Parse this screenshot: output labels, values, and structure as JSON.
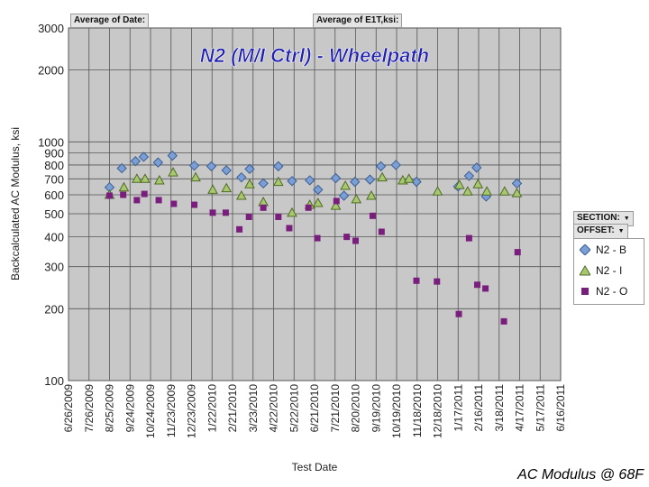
{
  "pivot": {
    "filter1": "Average of Date:",
    "filter2": "Average of E1T,ksi:",
    "section_label": "SECTION:",
    "offset_label": "OFFSET:"
  },
  "footer": "AC Modulus @ 68F",
  "chart_data": {
    "type": "scatter",
    "title": "N2 (M/I Ctrl) - Wheelpath",
    "xlabel": "Test Date",
    "ylabel": "Backcalculated AC Modulus, ksi",
    "yscale": "log",
    "ylim": [
      100,
      3000
    ],
    "yticks": [
      100,
      200,
      300,
      400,
      500,
      600,
      700,
      800,
      900,
      1000,
      2000,
      3000
    ],
    "xlim": [
      "2009-06-26",
      "2011-06-16"
    ],
    "xticks": [
      "6/26/2009",
      "7/26/2009",
      "8/25/2009",
      "9/24/2009",
      "10/24/2009",
      "11/23/2009",
      "12/23/2009",
      "1/22/2010",
      "2/21/2010",
      "3/23/2010",
      "4/22/2010",
      "5/22/2010",
      "6/21/2010",
      "7/21/2010",
      "8/20/2010",
      "9/19/2010",
      "10/19/2010",
      "11/18/2010",
      "12/18/2010",
      "1/17/2011",
      "2/16/2011",
      "3/18/2011",
      "4/17/2011",
      "5/17/2011",
      "6/16/2011"
    ],
    "grid": true,
    "legend": "right",
    "series": [
      {
        "name": "N2 - B",
        "marker": "diamond",
        "color": "#7b9fd4",
        "points": [
          [
            "2009-08-25",
            645
          ],
          [
            "2009-09-12",
            775
          ],
          [
            "2009-10-02",
            830
          ],
          [
            "2009-10-14",
            865
          ],
          [
            "2009-11-04",
            820
          ],
          [
            "2009-11-25",
            875
          ],
          [
            "2009-12-27",
            795
          ],
          [
            "2010-01-21",
            790
          ],
          [
            "2010-02-12",
            760
          ],
          [
            "2010-03-06",
            710
          ],
          [
            "2010-03-18",
            770
          ],
          [
            "2010-04-07",
            670
          ],
          [
            "2010-04-29",
            790
          ],
          [
            "2010-05-19",
            685
          ],
          [
            "2010-06-14",
            690
          ],
          [
            "2010-06-26",
            630
          ],
          [
            "2010-07-22",
            705
          ],
          [
            "2010-08-03",
            595
          ],
          [
            "2010-08-19",
            680
          ],
          [
            "2010-09-10",
            695
          ],
          [
            "2010-09-26",
            790
          ],
          [
            "2010-10-18",
            800
          ],
          [
            "2010-11-17",
            680
          ],
          [
            "2011-01-17",
            650
          ],
          [
            "2011-02-02",
            720
          ],
          [
            "2011-02-13",
            780
          ],
          [
            "2011-02-27",
            590
          ],
          [
            "2011-04-13",
            670
          ]
        ]
      },
      {
        "name": "N2 - I",
        "marker": "triangle",
        "color": "#a8c870",
        "points": [
          [
            "2009-08-25",
            600
          ],
          [
            "2009-09-15",
            645
          ],
          [
            "2009-10-04",
            700
          ],
          [
            "2009-10-16",
            700
          ],
          [
            "2009-11-06",
            690
          ],
          [
            "2009-11-26",
            745
          ],
          [
            "2009-12-29",
            710
          ],
          [
            "2010-01-23",
            630
          ],
          [
            "2010-02-12",
            640
          ],
          [
            "2010-03-06",
            595
          ],
          [
            "2010-03-18",
            665
          ],
          [
            "2010-04-07",
            560
          ],
          [
            "2010-04-29",
            680
          ],
          [
            "2010-05-19",
            505
          ],
          [
            "2010-06-14",
            545
          ],
          [
            "2010-06-26",
            555
          ],
          [
            "2010-07-22",
            540
          ],
          [
            "2010-08-05",
            655
          ],
          [
            "2010-08-21",
            575
          ],
          [
            "2010-09-12",
            595
          ],
          [
            "2010-09-28",
            710
          ],
          [
            "2010-10-28",
            690
          ],
          [
            "2010-11-06",
            700
          ],
          [
            "2010-12-18",
            620
          ],
          [
            "2011-01-19",
            660
          ],
          [
            "2011-01-31",
            620
          ],
          [
            "2011-02-15",
            665
          ],
          [
            "2011-02-28",
            620
          ],
          [
            "2011-03-26",
            620
          ],
          [
            "2011-04-13",
            610
          ]
        ]
      },
      {
        "name": "N2 - O",
        "marker": "square",
        "color": "#7a1e7e",
        "points": [
          [
            "2009-08-25",
            595
          ],
          [
            "2009-09-14",
            600
          ],
          [
            "2009-10-04",
            570
          ],
          [
            "2009-10-15",
            605
          ],
          [
            "2009-11-05",
            570
          ],
          [
            "2009-11-27",
            550
          ],
          [
            "2009-12-27",
            545
          ],
          [
            "2010-01-23",
            505
          ],
          [
            "2010-02-11",
            505
          ],
          [
            "2010-03-03",
            430
          ],
          [
            "2010-03-17",
            485
          ],
          [
            "2010-04-07",
            530
          ],
          [
            "2010-04-29",
            485
          ],
          [
            "2010-05-15",
            435
          ],
          [
            "2010-06-12",
            530
          ],
          [
            "2010-06-25",
            395
          ],
          [
            "2010-07-23",
            565
          ],
          [
            "2010-08-07",
            400
          ],
          [
            "2010-08-20",
            385
          ],
          [
            "2010-09-14",
            490
          ],
          [
            "2010-09-27",
            420
          ],
          [
            "2010-11-17",
            262
          ],
          [
            "2010-12-17",
            260
          ],
          [
            "2011-01-18",
            190
          ],
          [
            "2011-02-02",
            395
          ],
          [
            "2011-02-14",
            252
          ],
          [
            "2011-02-26",
            243
          ],
          [
            "2011-03-25",
            177
          ],
          [
            "2011-04-14",
            345
          ]
        ]
      }
    ]
  }
}
